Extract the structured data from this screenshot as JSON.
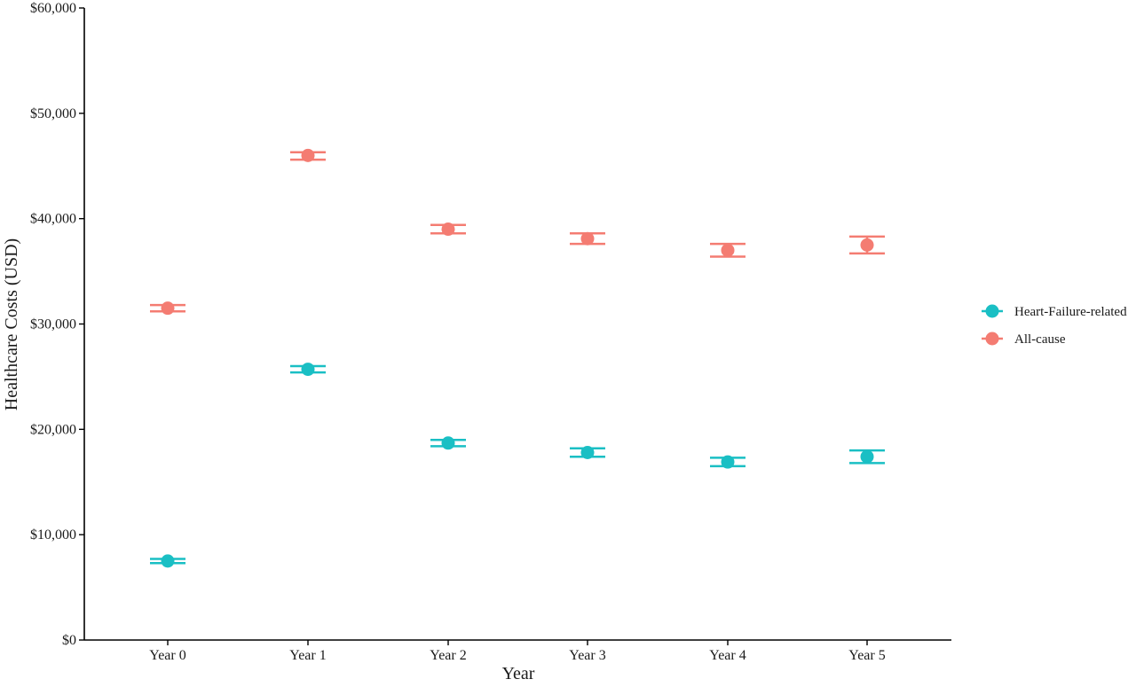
{
  "chart_data": {
    "type": "scatter",
    "xlabel": "Year",
    "ylabel": "Healthcare Costs (USD)",
    "categories": [
      "Year 0",
      "Year 1",
      "Year 2",
      "Year 3",
      "Year 4",
      "Year 5"
    ],
    "ylim": [
      0,
      60000
    ],
    "yticks": [
      0,
      10000,
      20000,
      30000,
      40000,
      50000,
      60000
    ],
    "ytick_labels": [
      "$0",
      "$10,000",
      "$20,000",
      "$30,000",
      "$40,000",
      "$50,000",
      "$60,000"
    ],
    "grid": false,
    "legend_position": "right",
    "error_bars": true,
    "series": [
      {
        "name": "Heart-Failure-related",
        "color": "#1ABFC4",
        "values": [
          7500,
          25700,
          18700,
          17800,
          16900,
          17400
        ],
        "lower": [
          7300,
          25400,
          18400,
          17400,
          16500,
          16800
        ],
        "upper": [
          7700,
          26000,
          19000,
          18200,
          17300,
          18000
        ]
      },
      {
        "name": "All-cause",
        "color": "#F47C72",
        "values": [
          31500,
          46000,
          39000,
          38100,
          37000,
          37500
        ],
        "lower": [
          31200,
          45600,
          38600,
          37600,
          36400,
          36700
        ],
        "upper": [
          31800,
          46300,
          39400,
          38600,
          37600,
          38300
        ]
      }
    ]
  }
}
